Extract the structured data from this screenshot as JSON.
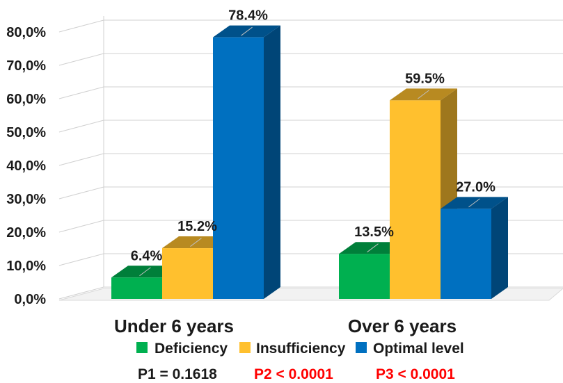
{
  "chart_data": {
    "type": "bar",
    "style": "3d-clustered-column",
    "categories": [
      "Under 6 years",
      "Over 6 years"
    ],
    "series": [
      {
        "name": "Deficiency",
        "values": [
          6.4,
          13.5
        ],
        "labels": [
          "6.4%",
          "13.5%"
        ],
        "color": "#00b050"
      },
      {
        "name": "Insufficiency",
        "values": [
          15.2,
          59.5
        ],
        "labels": [
          "15.2%",
          "59.5%"
        ],
        "color": "#ffc02e"
      },
      {
        "name": "Optimal level",
        "values": [
          78.4,
          27.0
        ],
        "labels": [
          "78.4%",
          "27.0%"
        ],
        "color": "#0070c0"
      }
    ],
    "ylim": [
      0,
      80
    ],
    "yticks": [
      0,
      10,
      20,
      30,
      40,
      50,
      60,
      70,
      80
    ],
    "ytick_labels": [
      "0,0%",
      "10,0%",
      "20,0%",
      "30,0%",
      "40,0%",
      "50,0%",
      "60,0%",
      "70,0%",
      "80,0%"
    ],
    "grid": true,
    "legend_position": "bottom"
  },
  "annotations": {
    "p1": {
      "text": "P1 = 0.1618",
      "color": "#1a1a1a"
    },
    "p2": {
      "text": "P2 < 0.0001",
      "color": "#ff0000"
    },
    "p3": {
      "text": "P3 < 0.0001",
      "color": "#ff0000"
    }
  }
}
